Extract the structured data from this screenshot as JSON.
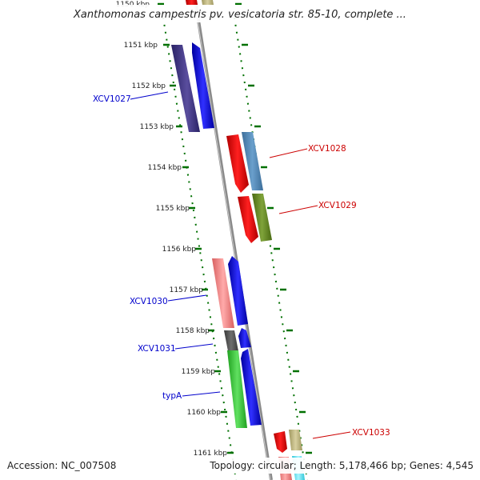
{
  "title": "Xanthomonas campestris pv. vesicatoria str. 85-10, complete ...",
  "footer": {
    "accession": "Accession: NC_007508",
    "summary": "Topology: circular; Length: 5,178,466 bp; Genes: 4,545"
  },
  "scale_labels": [
    "1150 kbp",
    "1151 kbp",
    "1152 kbp",
    "1153 kbp",
    "1154 kbp",
    "1155 kbp",
    "1156 kbp",
    "1157 kbp",
    "1158 kbp",
    "1159 kbp",
    "1160 kbp",
    "1161 kbp"
  ],
  "gene_labels": {
    "xcv1027": "XCV1027",
    "xcv1028": "XCV1028",
    "xcv1029": "XCV1029",
    "xcv1030": "XCV1030",
    "xcv1031": "XCV1031",
    "typA": "typA",
    "xcv1033": "XCV1033"
  },
  "colors": {
    "reverse_label": "#0000cc",
    "forward_label": "#cc0000",
    "backbone": "#8a8a8a",
    "tick": "#007000"
  }
}
